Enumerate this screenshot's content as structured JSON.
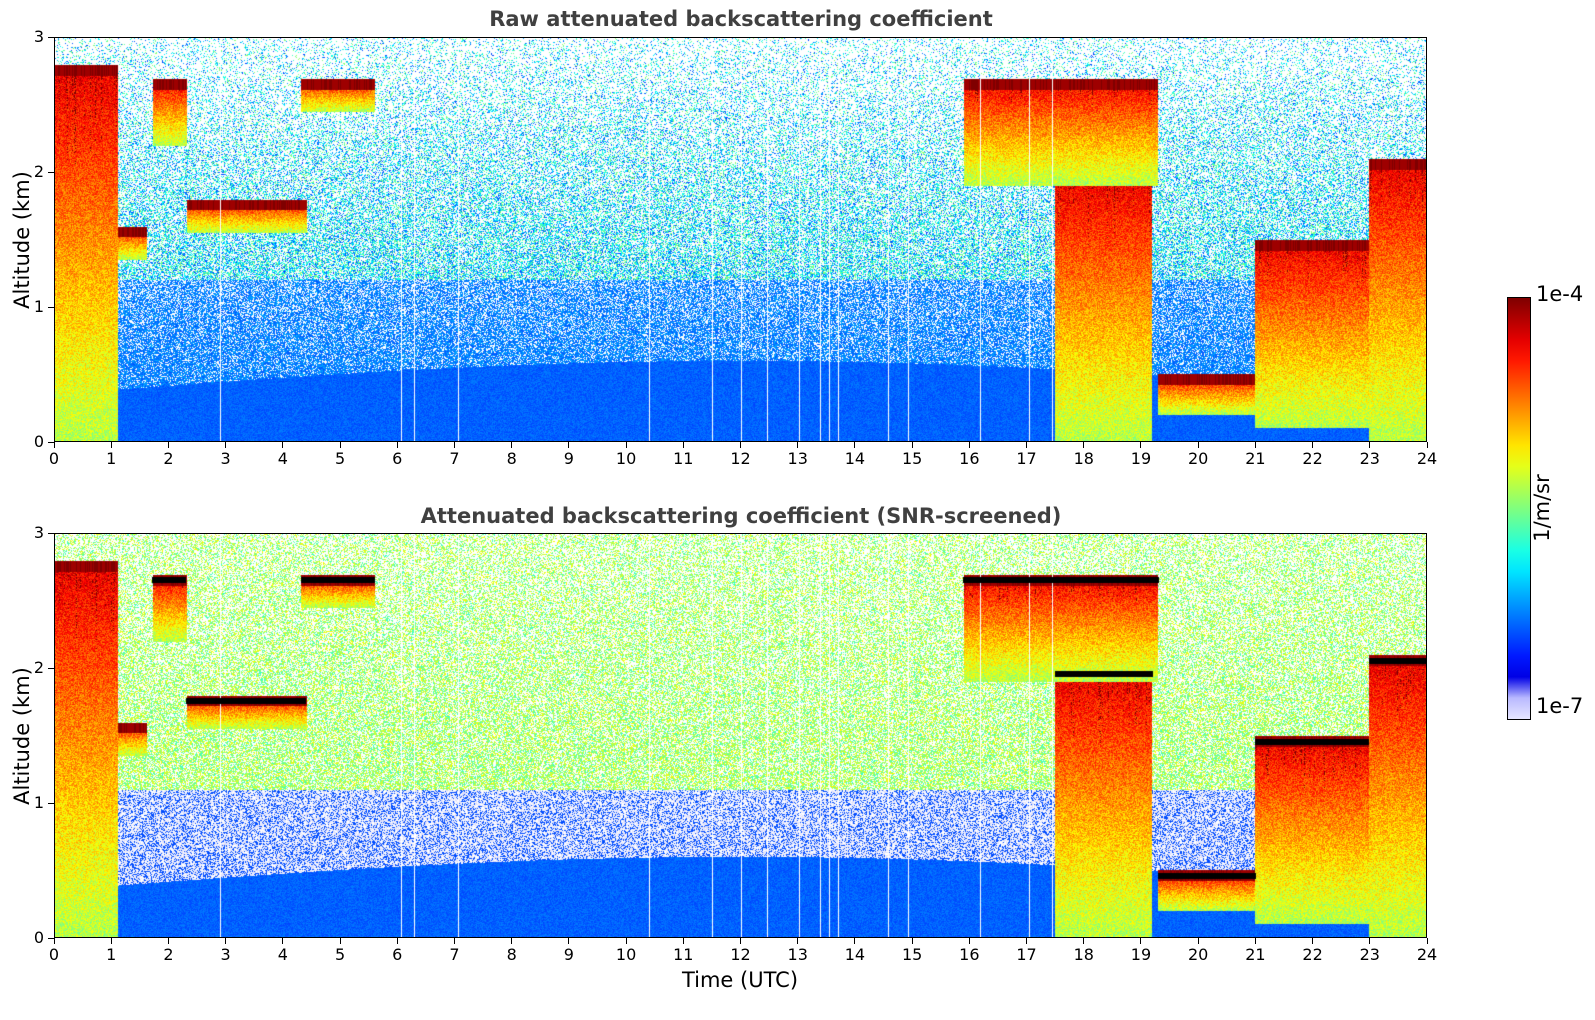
{
  "chart_data": [
    {
      "type": "heatmap",
      "title": "Raw attenuated backscattering coefficient",
      "xlabel": "",
      "ylabel": "Altitude (km)",
      "xlim": [
        0,
        24
      ],
      "ylim": [
        0,
        3
      ],
      "x_ticks": [
        "0",
        "1",
        "2",
        "3",
        "4",
        "5",
        "6",
        "7",
        "8",
        "9",
        "10",
        "11",
        "12",
        "13",
        "14",
        "15",
        "16",
        "17",
        "18",
        "19",
        "20",
        "21",
        "22",
        "23",
        "24"
      ],
      "y_ticks": [
        "0",
        "1",
        "2",
        "3"
      ],
      "cloud_layers": [
        {
          "t_start": 0.0,
          "t_end": 1.1,
          "base_km": 0.0,
          "top_km": 2.8
        },
        {
          "t_start": 1.1,
          "t_end": 1.6,
          "base_km": 1.35,
          "top_km": 1.6
        },
        {
          "t_start": 1.7,
          "t_end": 2.3,
          "base_km": 2.2,
          "top_km": 2.7
        },
        {
          "t_start": 2.3,
          "t_end": 4.4,
          "base_km": 1.55,
          "top_km": 1.8
        },
        {
          "t_start": 4.3,
          "t_end": 5.6,
          "base_km": 2.45,
          "top_km": 2.7
        },
        {
          "t_start": 15.9,
          "t_end": 19.3,
          "base_km": 1.9,
          "top_km": 2.7
        },
        {
          "t_start": 17.5,
          "t_end": 19.2,
          "base_km": 0.0,
          "top_km": 2.0
        },
        {
          "t_start": 19.3,
          "t_end": 21.0,
          "base_km": 0.2,
          "top_km": 0.5
        },
        {
          "t_start": 21.0,
          "t_end": 23.0,
          "base_km": 0.1,
          "top_km": 1.5
        },
        {
          "t_start": 23.0,
          "t_end": 24.0,
          "base_km": 0.0,
          "top_km": 2.1
        }
      ]
    },
    {
      "type": "heatmap",
      "title": "Attenuated backscattering coefficient (SNR-screened)",
      "xlabel": "Time (UTC)",
      "ylabel": "Altitude (km)",
      "xlim": [
        0,
        24
      ],
      "ylim": [
        0,
        3
      ],
      "x_ticks": [
        "0",
        "1",
        "2",
        "3",
        "4",
        "5",
        "6",
        "7",
        "8",
        "9",
        "10",
        "11",
        "12",
        "13",
        "14",
        "15",
        "16",
        "17",
        "18",
        "19",
        "20",
        "21",
        "22",
        "23",
        "24"
      ],
      "y_ticks": [
        "0",
        "1",
        "2",
        "3"
      ]
    }
  ],
  "colorbar": {
    "max_label": "1e-4",
    "min_label": "1e-7",
    "unit_label": "1/m/sr",
    "range": [
      1e-07,
      0.0001
    ],
    "scale": "log",
    "colormap": "jet"
  }
}
